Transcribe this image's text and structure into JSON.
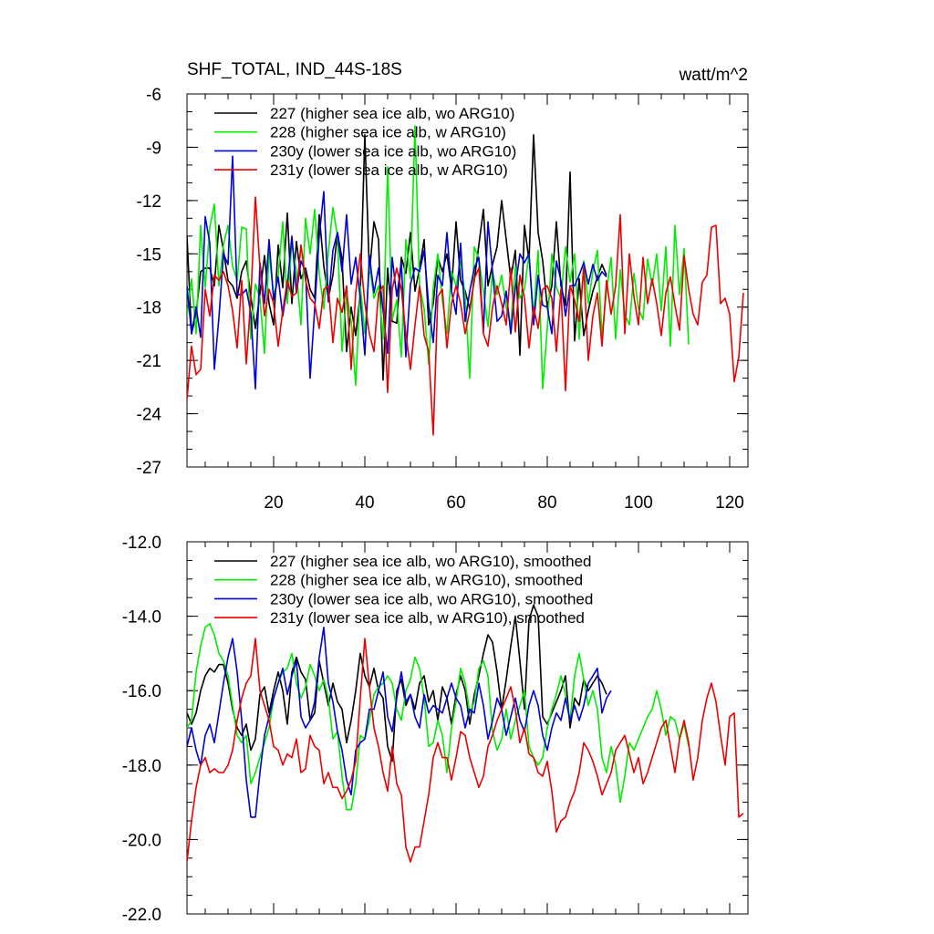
{
  "chart_data": [
    {
      "type": "line",
      "title": "SHF_TOTAL, IND_44S-18S",
      "units": "watt/m^2",
      "xlim": [
        1,
        124
      ],
      "ylim": [
        -27,
        -6
      ],
      "xticks": [
        20,
        40,
        60,
        80,
        100,
        120
      ],
      "xtick_labels": [
        "20",
        "40",
        "60",
        "80",
        "100",
        "120"
      ],
      "yticks": [
        -27,
        -24,
        -21,
        -18,
        -15,
        -12,
        -9,
        -6
      ],
      "ytick_labels": [
        "-27",
        "-24",
        "-21",
        "-18",
        "-15",
        "-12",
        "-9",
        "-6"
      ],
      "legend_position": "top-left",
      "series": [
        {
          "name": "227 (higher sea ice alb, wo ARG10)",
          "color": "#000000",
          "x_start": 1,
          "values": [
            -14.0,
            -19.5,
            -18.4,
            -16.0,
            -15.8,
            -15.8,
            -16.8,
            -13.4,
            -14.8,
            -16.5,
            -16.8,
            -17.5,
            -16.0,
            -15.4,
            -17.4,
            -19.2,
            -17.2,
            -15.1,
            -17.8,
            -19.0,
            -14.5,
            -16.9,
            -12.7,
            -17.8,
            -14.3,
            -16.4,
            -15.8,
            -17.0,
            -17.5,
            -12.8,
            -15.7,
            -17.5,
            -16.2,
            -13.8,
            -15.3,
            -20.5,
            -18.0,
            -19.6,
            -17.2,
            -8.3,
            -16.1,
            -13.2,
            -14.2,
            -22.1,
            -15.8,
            -18.8,
            -18.9,
            -15.2,
            -16.1,
            -13.8,
            -17.1,
            -15.8,
            -14.2,
            -19.0,
            -17.8,
            -15.2,
            -16.0,
            -15.0,
            -17.0,
            -13.2,
            -16.5,
            -17.1,
            -18.1,
            -16.5,
            -14.5,
            -12.5,
            -16.8,
            -15.6,
            -14.6,
            -12.0,
            -14.2,
            -16.4,
            -14.8,
            -20.7,
            -13.4,
            -15.4,
            -8.3,
            -13.8,
            -15.4,
            -18.0,
            -16.8,
            -13.2,
            -16.8,
            -17.9,
            -10.4,
            -19.9,
            -16.4,
            -19.6,
            -18.2,
            -17.1,
            -16.3,
            -15.6,
            -16.2
          ]
        },
        {
          "name": "228 (higher sea ice alb, w ARG10)",
          "color": "#00ee00",
          "x_start": 1,
          "values": [
            -18.5,
            -16.4,
            -19.5,
            -13.4,
            -16.9,
            -13.5,
            -12.2,
            -16.8,
            -14.5,
            -13.4,
            -15.7,
            -16.5,
            -13.5,
            -13.6,
            -19.8,
            -16.7,
            -17.5,
            -20.6,
            -14.9,
            -17.4,
            -16.2,
            -13.2,
            -17.8,
            -14.4,
            -16.0,
            -19.0,
            -13.0,
            -15.0,
            -12.5,
            -16.1,
            -18.1,
            -14.9,
            -12.4,
            -14.0,
            -20.5,
            -17.2,
            -18.8,
            -22.4,
            -16.8,
            -19.5,
            -15.6,
            -17.5,
            -16.8,
            -19.8,
            -10.1,
            -18.7,
            -17.6,
            -20.8,
            -14.2,
            -16.4,
            -7.8,
            -16.8,
            -18.1,
            -21.2,
            -16.9,
            -15.0,
            -17.6,
            -19.5,
            -16.0,
            -16.8,
            -15.4,
            -17.4,
            -22.0,
            -14.6,
            -15.3,
            -17.1,
            -19.1,
            -16.0,
            -17.3,
            -16.2,
            -18.0,
            -19.0,
            -15.7,
            -17.5,
            -17.0,
            -15.0,
            -18.5,
            -14.8,
            -22.6,
            -19.2,
            -15.0,
            -16.9,
            -17.5,
            -14.6,
            -16.6,
            -15.0,
            -19.8,
            -15.4,
            -17.8,
            -16.0,
            -14.8,
            -19.6,
            -17.1,
            -15.2,
            -19.8,
            -15.9,
            -18.4,
            -19.0,
            -16.1,
            -18.1,
            -18.7,
            -15.3,
            -16.8,
            -15.0,
            -18.2,
            -14.6,
            -20.2,
            -13.4,
            -17.3,
            -14.7,
            -20.1
          ]
        },
        {
          "name": "230y (lower sea ice alb, wo ARG10)",
          "color": "#0000dd",
          "x_start": 1,
          "values": [
            -16.8,
            -19.5,
            -18.0,
            -19.7,
            -12.9,
            -14.4,
            -21.5,
            -18.6,
            -15.0,
            -15.6,
            -9.5,
            -17.3,
            -17.3,
            -17.0,
            -18.3,
            -22.6,
            -15.5,
            -17.8,
            -14.2,
            -17.6,
            -16.3,
            -18.5,
            -16.8,
            -14.0,
            -17.2,
            -15.4,
            -16.0,
            -22.0,
            -18.1,
            -14.0,
            -11.5,
            -17.7,
            -14.8,
            -13.8,
            -16.0,
            -12.8,
            -16.7,
            -15.2,
            -17.5,
            -20.7,
            -15.1,
            -17.2,
            -15.8,
            -18.2,
            -20.6,
            -15.2,
            -17.4,
            -15.5,
            -20.8,
            -16.7,
            -15.8,
            -16.0,
            -14.8,
            -17.9,
            -20.0,
            -16.2,
            -16.8,
            -13.8,
            -17.1,
            -18.4,
            -14.4,
            -18.8,
            -17.1,
            -15.8,
            -15.2,
            -19.4,
            -13.2,
            -16.0,
            -18.8,
            -18.5,
            -17.1,
            -19.5,
            -16.9,
            -15.0,
            -15.5,
            -15.0,
            -19.0,
            -16.2,
            -17.9,
            -18.0,
            -19.5,
            -15.4,
            -16.5,
            -18.5,
            -16.8,
            -16.8,
            -16.2,
            -15.5,
            -16.7,
            -15.6,
            -16.5,
            -16.0,
            -16.3
          ]
        },
        {
          "name": "231y (lower sea ice alb, w ARG10)",
          "color": "#ee0000",
          "x_start": 1,
          "values": [
            -23.2,
            -20.2,
            -21.8,
            -21.5,
            -17.0,
            -18.5,
            -16.2,
            -16.5,
            -16.0,
            -16.8,
            -18.2,
            -20.3,
            -16.5,
            -21.2,
            -17.5,
            -11.8,
            -15.8,
            -18.5,
            -17.0,
            -17.8,
            -20.2,
            -18.2,
            -16.5,
            -17.4,
            -17.2,
            -14.5,
            -16.5,
            -17.5,
            -17.8,
            -19.2,
            -17.0,
            -16.8,
            -20.0,
            -17.5,
            -18.3,
            -16.8,
            -21.5,
            -17.2,
            -15.0,
            -17.8,
            -19.5,
            -20.5,
            -17.2,
            -16.8,
            -22.8,
            -17.0,
            -15.8,
            -17.0,
            -19.5,
            -21.5,
            -19.0,
            -16.8,
            -19.6,
            -20.5,
            -25.2,
            -17.4,
            -17.0,
            -20.3,
            -17.8,
            -16.8,
            -17.8,
            -19.5,
            -18.2,
            -16.4,
            -15.8,
            -19.5,
            -20.2,
            -18.0,
            -16.8,
            -17.8,
            -19.0,
            -15.8,
            -19.4,
            -16.2,
            -17.5,
            -20.3,
            -18.0,
            -19.2,
            -17.0,
            -16.8,
            -17.5,
            -20.5,
            -17.0,
            -22.7,
            -16.8,
            -17.6,
            -18.8,
            -15.8,
            -21.0,
            -18.5,
            -17.2,
            -20.2,
            -16.5,
            -18.4,
            -16.8,
            -12.8,
            -19.5,
            -15.0,
            -17.4,
            -19.0,
            -15.2,
            -17.8,
            -16.4,
            -17.8,
            -19.6,
            -17.2,
            -16.3,
            -17.9,
            -19.3,
            -15.1,
            -17.0,
            -18.4,
            -19.0,
            -16.6,
            -16.2,
            -13.5,
            -13.4,
            -17.8,
            -17.5,
            -18.4,
            -22.2,
            -20.8,
            -17.2
          ]
        }
      ]
    },
    {
      "type": "line",
      "title": "",
      "xlim": [
        1,
        124
      ],
      "ylim": [
        -22,
        -12
      ],
      "xticks": [
        20,
        40,
        60,
        80,
        100,
        120
      ],
      "yticks": [
        -22,
        -20,
        -18,
        -16,
        -14,
        -12
      ],
      "ytick_labels": [
        "-22.0",
        "-20.0",
        "-18.0",
        "-16.0",
        "-14.0",
        "-12.0"
      ],
      "legend_position": "top-left",
      "series": [
        {
          "name": "227 (higher sea ice alb, wo ARG10), smoothed",
          "color": "#000000",
          "x_start": 1,
          "values": [
            -16.6,
            -16.9,
            -16.6,
            -16.0,
            -15.6,
            -15.4,
            -15.5,
            -15.3,
            -15.3,
            -15.8,
            -16.5,
            -17.0,
            -17.2,
            -16.9,
            -17.6,
            -17.3,
            -16.1,
            -15.9,
            -16.6,
            -16.0,
            -15.5,
            -16.0,
            -16.9,
            -15.5,
            -15.1,
            -15.5,
            -15.7,
            -16.8,
            -16.6,
            -15.2,
            -15.8,
            -16.4,
            -15.8,
            -16.3,
            -16.5,
            -17.4,
            -16.8,
            -16.0,
            -15.0,
            -15.6,
            -15.9,
            -15.4,
            -16.0,
            -16.2,
            -17.5,
            -17.9,
            -16.0,
            -15.7,
            -16.4,
            -16.1,
            -16.5,
            -15.8,
            -15.6,
            -16.3,
            -16.0,
            -16.8,
            -15.9,
            -16.2,
            -16.9,
            -16.1,
            -15.6,
            -16.0,
            -16.9,
            -16.1,
            -15.6,
            -15.0,
            -14.5,
            -14.7,
            -15.5,
            -16.5,
            -15.7,
            -14.8,
            -14.0,
            -15.2,
            -16.5,
            -14.1,
            -13.7,
            -14.0,
            -16.7,
            -16.9,
            -16.6,
            -16.3,
            -16.0,
            -15.6,
            -17.0,
            -16.2,
            -16.4,
            -15.7,
            -16.0,
            -15.8,
            -15.6,
            -15.8,
            -16.1
          ]
        },
        {
          "name": "228 (higher sea ice alb, w ARG10), smoothed",
          "color": "#00ee00",
          "x_start": 1,
          "values": [
            -17.0,
            -16.8,
            -15.5,
            -14.8,
            -14.3,
            -14.2,
            -14.5,
            -15.0,
            -15.2,
            -15.6,
            -16.4,
            -17.2,
            -17.4,
            -17.2,
            -18.5,
            -18.2,
            -17.8,
            -17.4,
            -17.0,
            -16.2,
            -15.8,
            -15.5,
            -15.4,
            -15.0,
            -15.8,
            -16.2,
            -15.9,
            -15.3,
            -15.6,
            -16.0,
            -15.7,
            -16.2,
            -17.3,
            -17.1,
            -18.3,
            -19.2,
            -19.2,
            -18.5,
            -17.2,
            -17.3,
            -16.8,
            -16.1,
            -15.9,
            -15.8,
            -15.6,
            -15.8,
            -16.5,
            -16.8,
            -16.0,
            -15.7,
            -15.1,
            -15.4,
            -16.2,
            -17.5,
            -17.4,
            -16.8,
            -17.2,
            -18.2,
            -17.0,
            -16.3,
            -15.4,
            -15.8,
            -16.6,
            -16.3,
            -15.4,
            -15.2,
            -15.6,
            -17.1,
            -17.6,
            -17.3,
            -16.5,
            -17.3,
            -16.8,
            -16.4,
            -16.0,
            -17.5,
            -17.8,
            -18.0,
            -17.8,
            -17.0,
            -16.5,
            -16.1,
            -15.6,
            -16.1,
            -16.8,
            -15.6,
            -15.0,
            -15.7,
            -16.4,
            -16.0,
            -16.5,
            -17.8,
            -18.2,
            -17.5,
            -18.0,
            -19.0,
            -18.3,
            -17.4,
            -17.6,
            -17.3,
            -17.0,
            -16.7,
            -16.5,
            -16.0,
            -16.5,
            -17.2,
            -16.7,
            -16.8,
            -17.3,
            -16.9,
            -17.5
          ]
        },
        {
          "name": "230y (lower sea ice alb, wo ARG10), smoothed",
          "color": "#0000dd",
          "x_start": 1,
          "values": [
            -17.5,
            -17.0,
            -17.6,
            -18.0,
            -17.2,
            -16.9,
            -17.4,
            -16.6,
            -15.8,
            -15.1,
            -14.6,
            -15.5,
            -16.8,
            -18.4,
            -19.4,
            -19.4,
            -18.2,
            -17.2,
            -16.7,
            -16.2,
            -15.8,
            -15.4,
            -16.1,
            -15.6,
            -15.2,
            -16.7,
            -17.0,
            -16.8,
            -16.3,
            -15.1,
            -14.3,
            -15.8,
            -16.3,
            -17.1,
            -17.6,
            -18.4,
            -18.8,
            -17.6,
            -17.4,
            -17.3,
            -16.5,
            -16.5,
            -16.0,
            -15.5,
            -16.7,
            -17.1,
            -16.2,
            -15.5,
            -16.3,
            -16.1,
            -16.7,
            -17.0,
            -16.1,
            -16.6,
            -16.4,
            -16.5,
            -16.6,
            -16.2,
            -15.8,
            -16.2,
            -16.4,
            -17.0,
            -16.5,
            -16.6,
            -15.8,
            -16.4,
            -17.3,
            -16.8,
            -16.2,
            -16.5,
            -17.2,
            -16.7,
            -16.2,
            -16.8,
            -17.1,
            -16.4,
            -16.0,
            -16.4,
            -17.2,
            -17.6,
            -17.0,
            -16.6,
            -16.8,
            -16.2,
            -16.8,
            -16.4,
            -16.8,
            -16.4,
            -15.8,
            -15.6,
            -15.4,
            -16.6,
            -16.2,
            -16.0
          ]
        },
        {
          "name": "231y (lower sea ice alb, w ARG10), smoothed",
          "color": "#ee0000",
          "x_start": 1,
          "values": [
            -20.6,
            -19.5,
            -18.6,
            -18.0,
            -17.8,
            -18.2,
            -18.1,
            -18.2,
            -18.2,
            -18.0,
            -17.6,
            -16.8,
            -16.2,
            -15.8,
            -15.6,
            -14.6,
            -16.0,
            -16.4,
            -16.8,
            -17.5,
            -17.6,
            -18.0,
            -17.7,
            -17.8,
            -17.3,
            -18.2,
            -18.1,
            -17.2,
            -17.5,
            -17.6,
            -18.5,
            -18.2,
            -18.6,
            -18.6,
            -18.9,
            -18.7,
            -18.4,
            -17.9,
            -16.2,
            -14.6,
            -15.9,
            -17.0,
            -17.5,
            -18.2,
            -18.7,
            -17.5,
            -18.5,
            -18.8,
            -20.2,
            -20.6,
            -20.2,
            -20.2,
            -19.5,
            -18.8,
            -17.8,
            -17.4,
            -17.8,
            -17.8,
            -18.4,
            -17.8,
            -17.1,
            -17.2,
            -17.8,
            -18.2,
            -18.6,
            -18.3,
            -17.5,
            -17.2,
            -16.8,
            -16.5,
            -16.2,
            -15.9,
            -16.5,
            -17.4,
            -17.0,
            -17.7,
            -17.8,
            -18.2,
            -18.3,
            -17.9,
            -18.7,
            -19.8,
            -19.5,
            -19.4,
            -19.0,
            -18.7,
            -18.2,
            -17.4,
            -17.6,
            -17.9,
            -18.3,
            -18.8,
            -18.5,
            -18.2,
            -17.6,
            -17.4,
            -17.2,
            -17.7,
            -18.2,
            -17.8,
            -18.5,
            -18.2,
            -17.8,
            -17.4,
            -17.0,
            -16.8,
            -17.5,
            -18.2,
            -17.3,
            -16.8,
            -17.4,
            -18.4,
            -17.8,
            -16.8,
            -16.2,
            -15.8,
            -16.3,
            -17.2,
            -18.0,
            -16.7,
            -16.6,
            -19.4,
            -19.3
          ]
        }
      ]
    }
  ]
}
